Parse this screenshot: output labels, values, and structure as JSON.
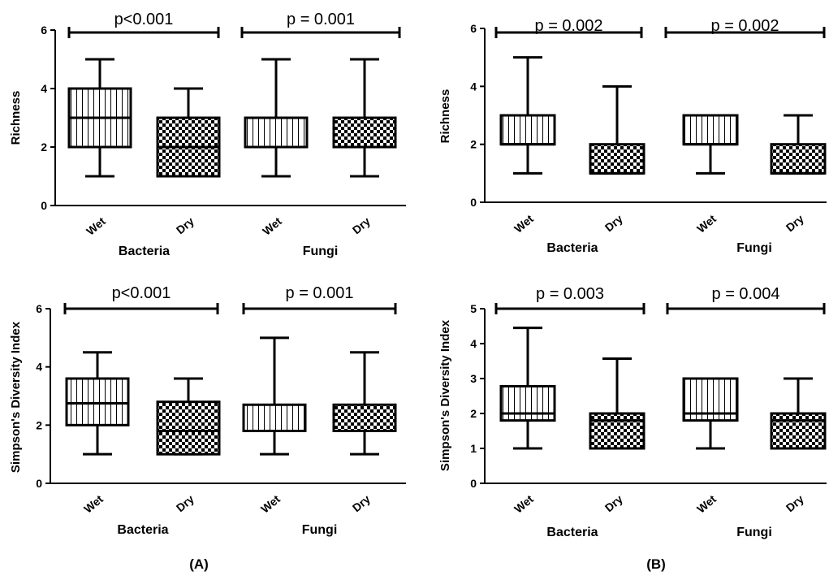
{
  "panels": [
    {
      "id": "A",
      "label": "(A)"
    },
    {
      "id": "B",
      "label": "(B)"
    }
  ],
  "chart_data": [
    {
      "type": "box",
      "panel": "A",
      "ylabel": "Richness",
      "ylim": [
        0,
        6
      ],
      "yticks": [
        "0",
        "2",
        "4",
        "6"
      ],
      "categories": [
        "Wet",
        "Dry",
        "Wet",
        "Dry"
      ],
      "groups": [
        {
          "name": "Bacteria",
          "comparison": "p<0.001"
        },
        {
          "name": "Fungi",
          "comparison": "p = 0.001"
        }
      ],
      "boxes": [
        {
          "category": "Wet",
          "group": "Bacteria",
          "min": 1,
          "q1": 2,
          "median": 3,
          "q3": 4,
          "max": 5,
          "pattern": "vertical"
        },
        {
          "category": "Dry",
          "group": "Bacteria",
          "min": 1,
          "q1": 1,
          "median": 2,
          "q3": 3,
          "max": 4,
          "pattern": "checker"
        },
        {
          "category": "Wet",
          "group": "Fungi",
          "min": 1,
          "q1": 2,
          "median": 2,
          "q3": 3,
          "max": 5,
          "pattern": "vertical"
        },
        {
          "category": "Dry",
          "group": "Fungi",
          "min": 1,
          "q1": 2,
          "median": 2,
          "q3": 3,
          "max": 5,
          "pattern": "checker"
        }
      ]
    },
    {
      "type": "box",
      "panel": "B",
      "ylabel": "Richness",
      "ylim": [
        0,
        6
      ],
      "yticks": [
        "0",
        "2",
        "4",
        "6"
      ],
      "categories": [
        "Wet",
        "Dry",
        "Wet",
        "Dry"
      ],
      "groups": [
        {
          "name": "Bacteria",
          "comparison": "p = 0.002"
        },
        {
          "name": "Fungi",
          "comparison": "p = 0.002"
        }
      ],
      "boxes": [
        {
          "category": "Wet",
          "group": "Bacteria",
          "min": 1,
          "q1": 2,
          "median": 2,
          "q3": 3,
          "max": 5,
          "pattern": "vertical"
        },
        {
          "category": "Dry",
          "group": "Bacteria",
          "min": 1,
          "q1": 1,
          "median": 1,
          "q3": 2,
          "max": 4,
          "pattern": "checker"
        },
        {
          "category": "Wet",
          "group": "Fungi",
          "min": 1,
          "q1": 2,
          "median": 2,
          "q3": 3,
          "max": 3,
          "pattern": "vertical"
        },
        {
          "category": "Dry",
          "group": "Fungi",
          "min": 1,
          "q1": 1,
          "median": 1,
          "q3": 2,
          "max": 3,
          "pattern": "checker"
        }
      ]
    },
    {
      "type": "box",
      "panel": "A",
      "ylabel": "Simpson's Diversity Index",
      "ylim": [
        0,
        6
      ],
      "yticks": [
        "0",
        "2",
        "4",
        "6"
      ],
      "categories": [
        "Wet",
        "Dry",
        "Wet",
        "Dry"
      ],
      "groups": [
        {
          "name": "Bacteria",
          "comparison": "p<0.001"
        },
        {
          "name": "Fungi",
          "comparison": "p = 0.001"
        }
      ],
      "boxes": [
        {
          "category": "Wet",
          "group": "Bacteria",
          "min": 1,
          "q1": 2,
          "median": 2.75,
          "q3": 3.6,
          "max": 4.5,
          "pattern": "vertical"
        },
        {
          "category": "Dry",
          "group": "Bacteria",
          "min": 1,
          "q1": 1,
          "median": 1.8,
          "q3": 2.8,
          "max": 3.6,
          "pattern": "checker"
        },
        {
          "category": "Wet",
          "group": "Fungi",
          "min": 1,
          "q1": 1.8,
          "median": 1.8,
          "q3": 2.7,
          "max": 5,
          "pattern": "vertical"
        },
        {
          "category": "Dry",
          "group": "Fungi",
          "min": 1,
          "q1": 1.8,
          "median": 1.8,
          "q3": 2.7,
          "max": 4.5,
          "pattern": "checker"
        }
      ]
    },
    {
      "type": "box",
      "panel": "B",
      "ylabel": "Simpson's Diversity Index",
      "ylim": [
        0,
        5
      ],
      "yticks": [
        "0",
        "1",
        "2",
        "3",
        "4",
        "5"
      ],
      "categories": [
        "Wet",
        "Dry",
        "Wet",
        "Dry"
      ],
      "groups": [
        {
          "name": "Bacteria",
          "comparison": "p = 0.003"
        },
        {
          "name": "Fungi",
          "comparison": "p = 0.004"
        }
      ],
      "boxes": [
        {
          "category": "Wet",
          "group": "Bacteria",
          "min": 1,
          "q1": 1.8,
          "median": 2,
          "q3": 2.78,
          "max": 4.45,
          "pattern": "vertical"
        },
        {
          "category": "Dry",
          "group": "Bacteria",
          "min": 1,
          "q1": 1,
          "median": 1.8,
          "q3": 2,
          "max": 3.57,
          "pattern": "checker"
        },
        {
          "category": "Wet",
          "group": "Fungi",
          "min": 1,
          "q1": 1.8,
          "median": 2,
          "q3": 3,
          "max": 3,
          "pattern": "vertical"
        },
        {
          "category": "Dry",
          "group": "Fungi",
          "min": 1,
          "q1": 1,
          "median": 1.8,
          "q3": 2,
          "max": 3,
          "pattern": "checker"
        }
      ]
    }
  ]
}
